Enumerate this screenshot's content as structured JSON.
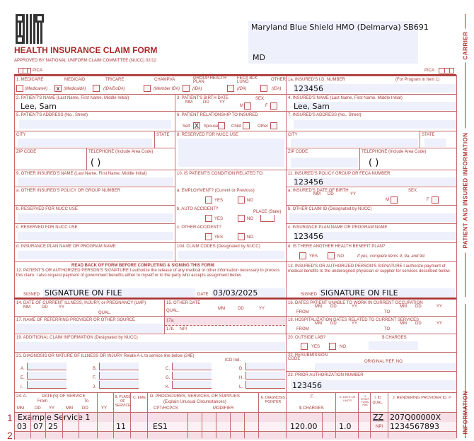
{
  "header": {
    "title": "HEALTH INSURANCE CLAIM FORM",
    "approved": "APPROVED BY NATIONAL UNIFORM CLAIM COMMITTEE (NUCC) 02/12",
    "pica": "PICA",
    "payer_name": "Maryland Blue Shield HMO (Delmarva) SB691",
    "payer_state": "MD"
  },
  "sidebar": {
    "carrier": "CARRIER",
    "patient_info": "PATIENT AND INSURED INFORMATION",
    "physician_info": "INFORMATION"
  },
  "item1": {
    "medicare": "1.    MEDICARE",
    "medicaid": "MEDICAID",
    "tricare": "TRICARE",
    "champva": "CHAMPVA",
    "group": "GROUP HEALTH PLAN",
    "feca": "FECA BLK LUNG",
    "other": "OTHER",
    "medicare_id": "(Medicare#)",
    "medicaid_id": "(Medicaid#)",
    "tricare_id": "(ID#/DoD#)",
    "champva_id": "(Member ID#)",
    "group_id": "(ID#)",
    "feca_id": "(ID#)",
    "other_id": "(ID#)",
    "checked_mark": "x"
  },
  "item1a": {
    "label": "1a. INSURED'S I.D. NUMBER",
    "note": "(For Program in Item 1)",
    "value": "123456"
  },
  "item2": {
    "label": "2. PATIENT'S NAME (Last Name, First Name, Middle Initial)",
    "value": "Lee, Sam"
  },
  "item3": {
    "label": "3. PATIENT'S BIRTH DATE",
    "mm": "MM",
    "dd": "DD",
    "yy": "YY",
    "sex": "SEX",
    "m": "M",
    "f": "F"
  },
  "item4": {
    "label": "4. INSURED'S NAME (Last Name, First Name, Middle Initial)",
    "value": "Lee, Sam"
  },
  "item5": {
    "label": "5. PATIENT'S ADDRESS (No., Street)",
    "city": "CITY",
    "state": "STATE",
    "zip": "ZIP CODE",
    "tel": "TELEPHONE (Include Area Code)",
    "paren": "(          )"
  },
  "item6": {
    "label": "6. PATIENT RELATIONSHIP TO INSURED",
    "self": "Self",
    "spouse": "Spouse",
    "child": "Child",
    "other": "Other",
    "checked_mark": "X"
  },
  "item7": {
    "label": "7. INSURED'S ADDRESS (No., Street)",
    "city": "CITY",
    "state": "STATE",
    "zip": "ZIP CODE",
    "tel": "TELEPHONE (Include Area Code)",
    "paren": "(          )"
  },
  "item8": {
    "label": "8. RESERVED FOR NUCC USE"
  },
  "item9": {
    "label": "9. OTHER INSURED'S NAME (Last Name, First Name, Middle Initial)",
    "a": "a. OTHER INSURED'S POLICY OR GROUP NUMBER",
    "b": "b. RESERVED FOR NUCC USE",
    "c": "c. RESERVED FOR NUCC USE",
    "d": "d. INSURANCE PLAN NAME OR PROGRAM NAME"
  },
  "item10": {
    "label": "10. IS PATIENT'S CONDITION RELATED TO:",
    "a": "a. EMPLOYMENT? (Current or Previous)",
    "b": "b. AUTO ACCIDENT?",
    "place": "PLACE (State)",
    "c": "c. OTHER ACCIDENT?",
    "d": "10d. CLAIM CODES (Designated by NUCC)",
    "yes": "YES",
    "no": "NO"
  },
  "item11": {
    "label": "11. INSURED'S POLICY GROUP OR FECA NUMBER",
    "value": "123456",
    "a": "a. INSURED'S DATE OF BIRTH",
    "mm": "MM",
    "dd": "DD",
    "yy": "YY",
    "sex": "SEX",
    "m": "M",
    "f": "F",
    "b": "b. OTHER CLAIM ID (Designated by NUCC)",
    "c": "c. INSURANCE PLAN NAME OR PROGRAM NAME",
    "c_value": "123456",
    "d": "d. IS THERE ANOTHER HEALTH BENEFIT PLAN?",
    "yes": "YES",
    "no": "NO",
    "d_note": "If yes, complete items 9, 9a, and 9d."
  },
  "item12": {
    "readback": "READ BACK OF FORM BEFORE COMPLETING & SIGNING THIS FORM.",
    "text": "12. PATIENT'S OR AUTHORIZED PERSON'S SIGNATURE  I authorize the release of any medical or other information necessary to process this claim. I also request payment of government benefits either to myself or to the party who accepts assignment below.",
    "signed": "SIGNED",
    "signature": "SIGNATURE ON FILE",
    "date_label": "DATE",
    "date": "03/03/2025"
  },
  "item13": {
    "text": "13. INSURED'S OR AUTHORIZED PERSON'S SIGNATURE I authorize payment of medical benefits to the undersigned physician or supplier for services described below.",
    "signed": "SIGNED",
    "signature": "SIGNATURE ON FILE"
  },
  "item14": {
    "label": "14. DATE OF CURRENT ILLNESS, INJURY, or PREGNANCY (LMP)",
    "mm": "MM",
    "dd": "DD",
    "yy": "YY",
    "qual": "QUAL."
  },
  "item15": {
    "label": "15. OTHER DATE",
    "qual": "QUAL.",
    "mm": "MM",
    "dd": "DD",
    "yy": "YY"
  },
  "item16": {
    "label": "16. DATES PATIENT UNABLE TO WORK IN CURRENT OCCUPATION",
    "from": "FROM",
    "to": "TO",
    "mm": "MM",
    "dd": "DD",
    "yy": "YY"
  },
  "item17": {
    "label": "17. NAME OF REFERRING PROVIDER OR OTHER SOURCE",
    "a": "17a.",
    "b": "17b.",
    "npi": "NPI"
  },
  "item18": {
    "label": "18. HOSPITALIZATION DATES RELATED TO CURRENT SERVICES",
    "from": "FROM",
    "to": "TO",
    "mm": "MM",
    "dd": "DD",
    "yy": "YY"
  },
  "item19": {
    "label": "19. ADDITIONAL CLAIM INFORMATION (Designated by NUCC)"
  },
  "item20": {
    "label": "20. OUTSIDE LAB?",
    "charges": "$ CHARGES",
    "yes": "YES",
    "no": "NO"
  },
  "item21": {
    "label": "21. DIAGNOSIS OR NATURE OF ILLNESS OR INJURY  Relate A-L to service line below (24E)",
    "icd": "ICD Ind.",
    "letters": [
      "A.",
      "B.",
      "C.",
      "D.",
      "E.",
      "F.",
      "G.",
      "H.",
      "I.",
      "J.",
      "K.",
      "L."
    ]
  },
  "item22": {
    "label": "22. RESUBMISSION CODE",
    "orig": "ORIGINAL REF. NO."
  },
  "item23": {
    "label": "23. PRIOR AUTHORIZATION NUMBER",
    "value": "123456"
  },
  "item24": {
    "headers": {
      "a": "24. A.",
      "dates": "DATE(S) OF SERVICE",
      "from": "From",
      "to": "To",
      "mm": "MM",
      "dd": "DD",
      "yy": "YY",
      "mm2": "MM",
      "dd2": "DD",
      "yy2": "YY",
      "b": "B. PLACE OF SERVICE",
      "c": "C. EMG",
      "d": "D. PROCEDURES, SERVICES, OR SUPPLIES",
      "d2": "(Explain Unusual Circumstances)",
      "cpt": "CPT/HCPCS",
      "mod": "MODIFIER",
      "e": "E. DIAGNOSIS POINTER",
      "f": "F.",
      "charges": "$ CHARGES",
      "g": "G. DAYS OR UNITS",
      "h": "H. EPSDT Family Plan",
      "i": "I. ID QUAL.",
      "j": "J. RENDERING PROVIDER ID. #"
    },
    "lines": [
      {
        "num": "1",
        "description": "Example Service 1",
        "from_mm": "03",
        "from_dd": "07",
        "from_yy": "25",
        "pos": "11",
        "cpt": "ES1",
        "charges": "120.00",
        "units": "1.0",
        "qual": "ZZ",
        "taxonomy": "207Q00000X",
        "npi_label": "NPI",
        "npi": "1234567893"
      },
      {
        "num": "2"
      }
    ]
  }
}
